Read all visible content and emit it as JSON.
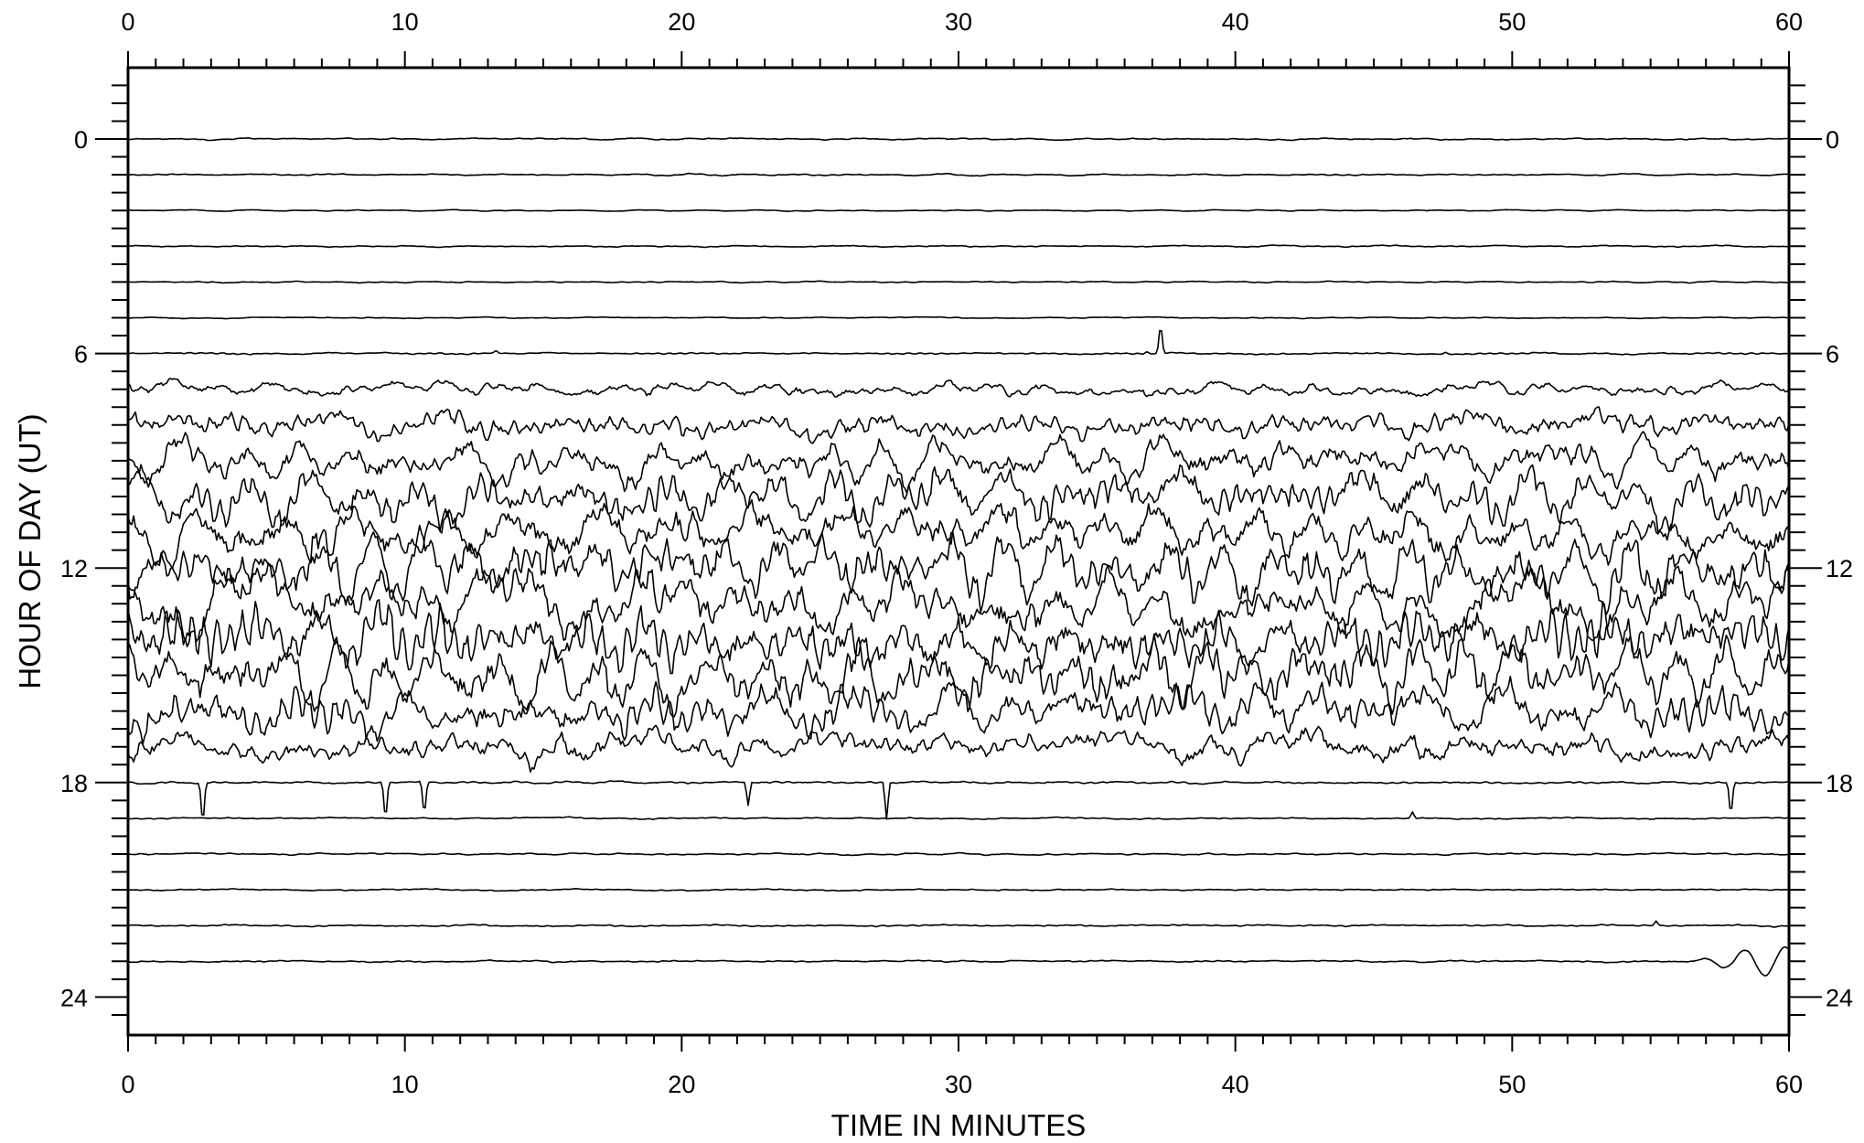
{
  "chart_data": {
    "type": "line",
    "title": "",
    "xlabel": "TIME IN MINUTES",
    "ylabel": "HOUR OF DAY (UT)",
    "xlim": [
      0,
      60
    ],
    "ylim": [
      -2,
      25
    ],
    "y_inverted": true,
    "x_major_ticks": [
      0,
      10,
      20,
      30,
      40,
      50,
      60
    ],
    "x_minor_tick_step": 1,
    "y_major_ticks": [
      0,
      6,
      12,
      18,
      24
    ],
    "y_minor_tick_step": 1,
    "grid": false,
    "legend": "none",
    "line_color": "#000000",
    "series": [
      {
        "hour": 0,
        "activity": 0.06
      },
      {
        "hour": 1,
        "activity": 0.05
      },
      {
        "hour": 2,
        "activity": 0.04
      },
      {
        "hour": 3,
        "activity": 0.05
      },
      {
        "hour": 4,
        "activity": 0.04
      },
      {
        "hour": 5,
        "activity": 0.04
      },
      {
        "hour": 6,
        "activity": 0.05,
        "spikes": [
          {
            "t": 13.3,
            "amp": 0.12
          },
          {
            "t": 37.3,
            "amp": 1.7
          },
          {
            "t": 36.8,
            "amp": 0.1
          },
          {
            "t": 47.6,
            "amp": 0.08
          }
        ]
      },
      {
        "hour": 7,
        "activity": 0.45
      },
      {
        "hour": 8,
        "activity": 0.9
      },
      {
        "hour": 9,
        "activity": 1.3
      },
      {
        "hour": 10,
        "activity": 1.6
      },
      {
        "hour": 11,
        "activity": 1.9
      },
      {
        "hour": 12,
        "activity": 2.0
      },
      {
        "hour": 13,
        "activity": 2.0
      },
      {
        "hour": 14,
        "activity": 2.0
      },
      {
        "hour": 15,
        "activity": 1.9
      },
      {
        "hour": 16,
        "activity": 1.6
      },
      {
        "hour": 17,
        "activity": 1.1
      },
      {
        "hour": 18,
        "activity": 0.07,
        "spikes": [
          {
            "t": 2.7,
            "amp": -2.5
          },
          {
            "t": 9.3,
            "amp": -2.2
          },
          {
            "t": 10.7,
            "amp": -2.0
          },
          {
            "t": 22.4,
            "amp": -1.3
          },
          {
            "t": 27.4,
            "amp": -2.0
          },
          {
            "t": 57.9,
            "amp": -2.0
          }
        ]
      },
      {
        "hour": 19,
        "activity": 0.06,
        "spikes": [
          {
            "t": 46.4,
            "amp": 0.35
          }
        ]
      },
      {
        "hour": 20,
        "activity": 0.06
      },
      {
        "hour": 21,
        "activity": 0.05
      },
      {
        "hour": 22,
        "activity": 0.06,
        "spikes": [
          {
            "t": 55.2,
            "amp": 0.25
          }
        ]
      },
      {
        "hour": 23,
        "activity": 0.06,
        "wave": {
          "start": 56.5,
          "amp": 1.0
        }
      }
    ]
  }
}
